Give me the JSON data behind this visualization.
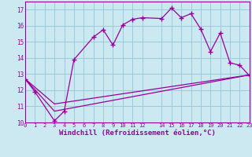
{
  "bg_color": "#cce8f0",
  "grid_color": "#99ccdd",
  "line_color": "#990099",
  "xlabel": "Windchill (Refroidissement éolien,°C)",
  "xlabel_fontsize": 6.5,
  "xmin": 0,
  "xmax": 23,
  "ymin": 10,
  "ymax": 17.5,
  "yticks": [
    10,
    11,
    12,
    13,
    14,
    15,
    16,
    17
  ],
  "xticks": [
    0,
    1,
    2,
    3,
    4,
    5,
    6,
    7,
    8,
    9,
    10,
    11,
    12,
    14,
    15,
    16,
    17,
    18,
    19,
    20,
    21,
    22,
    23
  ],
  "xlabels": [
    "0",
    "1",
    "2",
    "3",
    "4",
    "5",
    "6",
    "7",
    "8",
    "9",
    "10",
    "11",
    "12",
    "14",
    "15",
    "16",
    "17",
    "18",
    "19",
    "20",
    "21",
    "22",
    "23"
  ],
  "curve1_x": [
    0,
    1,
    3,
    4,
    5,
    7,
    8,
    9,
    10,
    11,
    12,
    14,
    15,
    16,
    17,
    18,
    19,
    20,
    21,
    22,
    23
  ],
  "curve1_y": [
    12.7,
    11.9,
    10.1,
    10.7,
    13.9,
    15.3,
    15.75,
    14.8,
    16.05,
    16.4,
    16.5,
    16.45,
    17.1,
    16.5,
    16.75,
    15.8,
    14.4,
    15.55,
    13.7,
    13.55,
    12.9
  ],
  "curve2_x": [
    0,
    3,
    23
  ],
  "curve2_y": [
    12.7,
    10.7,
    12.95
  ],
  "curve3_x": [
    0,
    3,
    23
  ],
  "curve3_y": [
    12.7,
    11.15,
    12.95
  ]
}
